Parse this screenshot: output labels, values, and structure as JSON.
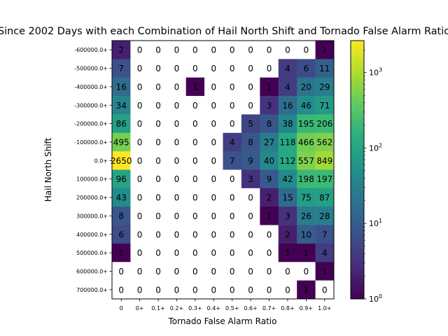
{
  "chart_data": {
    "type": "heatmap",
    "title": "Since 2002 Days with each Combination of Hail North Shift and Tornado False Alarm Ratio",
    "xlabel": "Tornado False Alarm Ratio",
    "ylabel": "Hail North Shift",
    "x_tick_labels": [
      "0",
      "0+",
      "0.1+",
      "0.2+",
      "0.3+",
      "0.4+",
      "0.5+",
      "0.6+",
      "0.7+",
      "0.8+",
      "0.9+",
      "1.0+"
    ],
    "y_tick_labels": [
      "-600000.0+",
      "-500000.0+",
      "-400000.0+",
      "-300000.0+",
      "-200000.0+",
      "-100000.0+",
      "0.0+",
      "100000.0+",
      "200000.0+",
      "300000.0+",
      "400000.0+",
      "500000.0+",
      "600000.0+",
      "700000.0+"
    ],
    "values": [
      [
        2,
        0,
        0,
        0,
        0,
        0,
        0,
        0,
        0,
        0,
        0,
        1
      ],
      [
        7,
        0,
        0,
        0,
        0,
        0,
        0,
        0,
        0,
        4,
        6,
        11
      ],
      [
        16,
        0,
        0,
        0,
        1,
        0,
        0,
        0,
        1,
        4,
        20,
        29
      ],
      [
        34,
        0,
        0,
        0,
        0,
        0,
        0,
        0,
        3,
        16,
        46,
        71
      ],
      [
        86,
        0,
        0,
        0,
        0,
        0,
        0,
        5,
        8,
        38,
        195,
        206
      ],
      [
        495,
        0,
        0,
        0,
        0,
        0,
        4,
        8,
        27,
        118,
        466,
        562
      ],
      [
        2650,
        0,
        0,
        0,
        0,
        0,
        7,
        9,
        40,
        112,
        557,
        849
      ],
      [
        96,
        0,
        0,
        0,
        0,
        0,
        0,
        3,
        9,
        42,
        198,
        197
      ],
      [
        43,
        0,
        0,
        0,
        0,
        0,
        0,
        0,
        2,
        15,
        75,
        87
      ],
      [
        8,
        0,
        0,
        0,
        0,
        0,
        0,
        0,
        1,
        3,
        26,
        28
      ],
      [
        6,
        0,
        0,
        0,
        0,
        0,
        0,
        0,
        0,
        2,
        10,
        7
      ],
      [
        1,
        0,
        0,
        0,
        0,
        0,
        0,
        0,
        0,
        1,
        1,
        4
      ],
      [
        0,
        0,
        0,
        0,
        0,
        0,
        0,
        0,
        0,
        0,
        0,
        1
      ],
      [
        0,
        0,
        0,
        0,
        0,
        0,
        0,
        0,
        0,
        0,
        1,
        0
      ]
    ],
    "colorscale": "viridis",
    "color_scale_type": "log",
    "color_range": [
      1,
      2650
    ],
    "colorbar_ticks": [
      {
        "value": 1,
        "base": "10",
        "exp": "0"
      },
      {
        "value": 10,
        "base": "10",
        "exp": "1"
      },
      {
        "value": 100,
        "base": "10",
        "exp": "2"
      },
      {
        "value": 1000,
        "base": "10",
        "exp": "3"
      }
    ],
    "zero_cell_color": "#ffffff",
    "grid": false
  }
}
